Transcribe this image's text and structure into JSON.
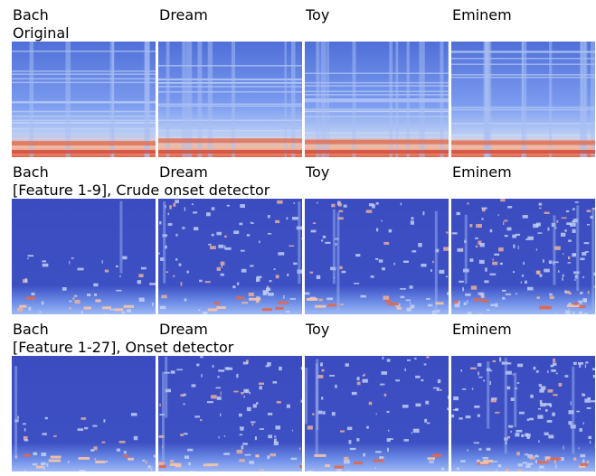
{
  "rows": [
    {
      "columns": [
        "Bach",
        "Dream",
        "Toy",
        "Eminem"
      ],
      "caption": "Original"
    },
    {
      "columns": [
        "Bach",
        "Dream",
        "Toy",
        "Eminem"
      ],
      "caption": "[Feature 1-9], Crude onset detector"
    },
    {
      "columns": [
        "Bach",
        "Dream",
        "Toy",
        "Eminem"
      ],
      "caption": "[Feature 1-27], Onset detector"
    }
  ]
}
